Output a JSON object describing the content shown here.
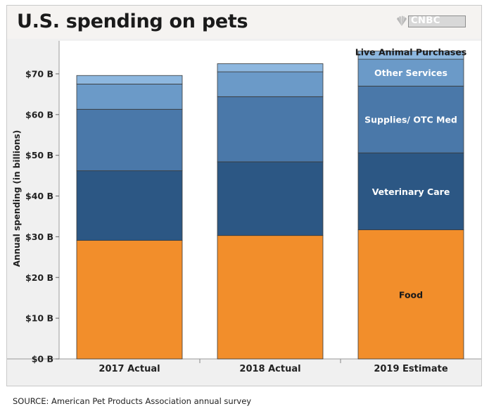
{
  "header": {
    "title": "U.S. spending on pets",
    "logo_text": "CNBC"
  },
  "source": "SOURCE: American Pet Products Association annual survey",
  "chart_data": {
    "type": "bar",
    "stacked": true,
    "title": "U.S. spending on pets",
    "ylabel": "Annual spending (in billions)",
    "xlabel": "",
    "categories": [
      "2017 Actual",
      "2018 Actual",
      "2019 Estimate"
    ],
    "ylim": [
      0,
      75
    ],
    "yticks": [
      0,
      10,
      20,
      30,
      40,
      50,
      60,
      70
    ],
    "ytick_labels": [
      "$0 B",
      "$10 B",
      "$20 B",
      "$30 B",
      "$40 B",
      "$50 B",
      "$60 B",
      "$70 B"
    ],
    "series": [
      {
        "name": "Food",
        "color": "#f28e2b",
        "values": [
          29.1,
          30.3,
          31.7
        ]
      },
      {
        "name": "Veterinary Care",
        "color": "#2c5784",
        "values": [
          17.1,
          18.1,
          18.9
        ]
      },
      {
        "name": "Supplies/ OTC Med",
        "color": "#4a78a9",
        "values": [
          15.1,
          16.0,
          16.4
        ]
      },
      {
        "name": "Other Services",
        "color": "#6b9ac8",
        "values": [
          6.2,
          6.1,
          6.6
        ]
      },
      {
        "name": "Live Animal Purchases",
        "color": "#8db7df",
        "values": [
          2.1,
          2.0,
          2.0
        ]
      }
    ],
    "inline_labels_on": "2019 Estimate",
    "grid": false
  }
}
